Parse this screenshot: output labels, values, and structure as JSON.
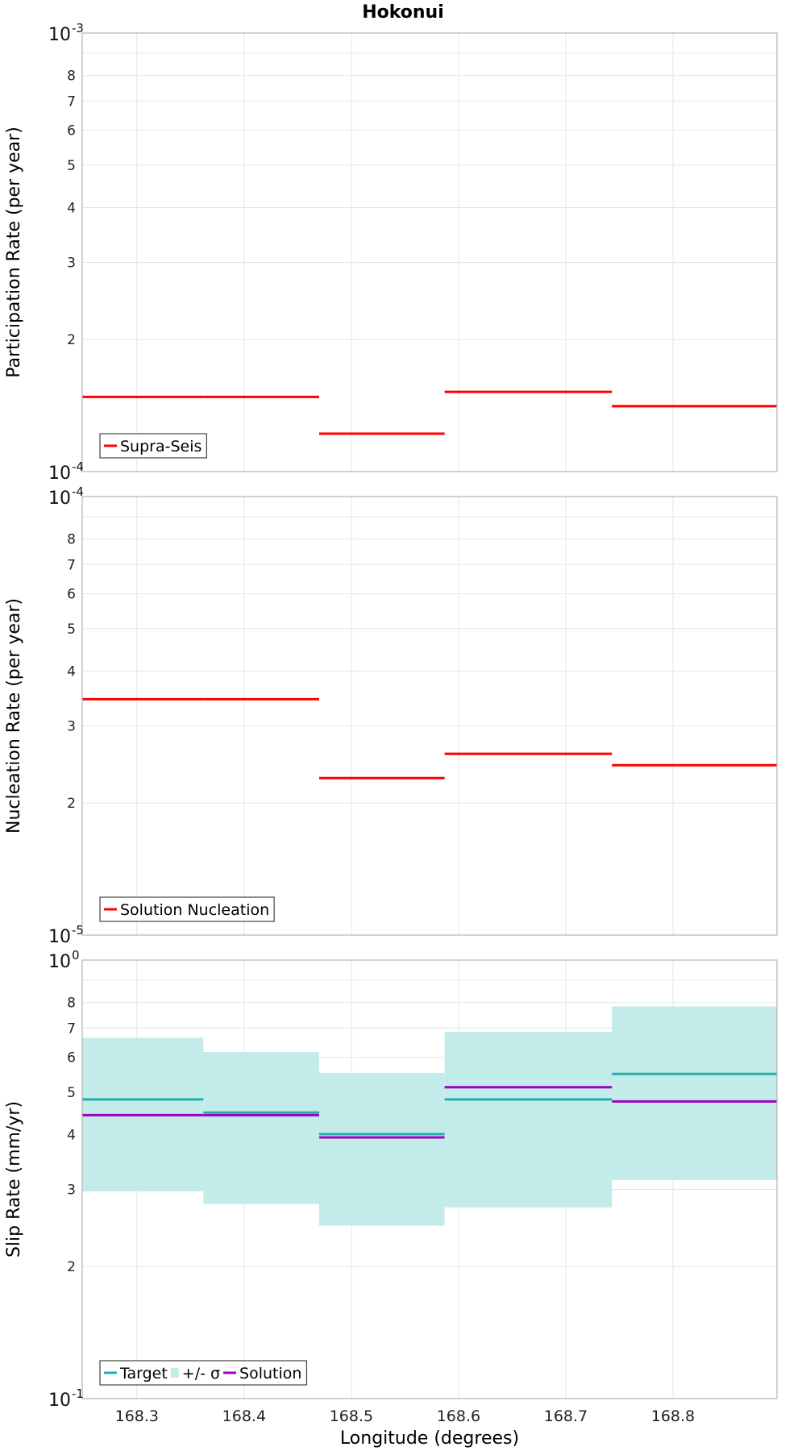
{
  "title": "Hokonui",
  "chart_data": [
    {
      "type": "line",
      "ylabel": "Participation Rate (per year)",
      "yscale": "log",
      "ylim": [
        0.0001,
        0.001
      ],
      "y_decade_labels": {
        "bottom": {
          "base": "10",
          "exp": "-4"
        },
        "top": {
          "base": "10",
          "exp": "-3"
        }
      },
      "y_minor_ticks": [
        2,
        3,
        4,
        5,
        6,
        7,
        8
      ],
      "legend": {
        "placement": "bottom-left",
        "entries": [
          {
            "label": "Supra-Seis",
            "color": "#ff0000"
          }
        ]
      },
      "series": [
        {
          "name": "Supra-Seis",
          "color": "#ff0000",
          "style": "step",
          "segments": [
            {
              "x0": 168.249,
              "x1": 168.362,
              "y": 0.000148
            },
            {
              "x0": 168.362,
              "x1": 168.47,
              "y": 0.000148
            },
            {
              "x0": 168.47,
              "x1": 168.587,
              "y": 0.000122
            },
            {
              "x0": 168.587,
              "x1": 168.743,
              "y": 0.000152
            },
            {
              "x0": 168.743,
              "x1": 168.897,
              "y": 0.000141
            }
          ]
        }
      ]
    },
    {
      "type": "line",
      "ylabel": "Nucleation Rate (per year)",
      "yscale": "log",
      "ylim": [
        1e-05,
        0.0001
      ],
      "y_decade_labels": {
        "bottom": {
          "base": "10",
          "exp": "-5"
        },
        "top": {
          "base": "10",
          "exp": "-4"
        }
      },
      "y_minor_ticks": [
        2,
        3,
        4,
        5,
        6,
        7,
        8
      ],
      "legend": {
        "placement": "bottom-left",
        "entries": [
          {
            "label": "Solution Nucleation",
            "color": "#ff0000"
          }
        ]
      },
      "series": [
        {
          "name": "Solution Nucleation",
          "color": "#ff0000",
          "style": "step",
          "segments": [
            {
              "x0": 168.249,
              "x1": 168.362,
              "y": 3.45e-05
            },
            {
              "x0": 168.362,
              "x1": 168.47,
              "y": 3.45e-05
            },
            {
              "x0": 168.47,
              "x1": 168.587,
              "y": 2.28e-05
            },
            {
              "x0": 168.587,
              "x1": 168.743,
              "y": 2.59e-05
            },
            {
              "x0": 168.743,
              "x1": 168.897,
              "y": 2.44e-05
            }
          ]
        }
      ]
    },
    {
      "type": "line",
      "xlabel": "Longitude (degrees)",
      "ylabel": "Slip Rate (mm/yr)",
      "yscale": "log",
      "ylim": [
        0.1,
        1
      ],
      "xlim": [
        168.249,
        168.897
      ],
      "x_ticks": [
        "168.3",
        "168.4",
        "168.5",
        "168.6",
        "168.7",
        "168.8"
      ],
      "y_decade_labels": {
        "bottom": {
          "base": "10",
          "exp": "-1"
        },
        "top": {
          "base": "10",
          "exp": "0"
        }
      },
      "y_minor_ticks": [
        2,
        3,
        4,
        5,
        6,
        7,
        8
      ],
      "legend": {
        "placement": "bottom-left",
        "entries": [
          {
            "label": "Target",
            "color": "#20b2aa",
            "kind": "line"
          },
          {
            "label": "+/- σ",
            "color": "#c2ebe9",
            "kind": "box"
          },
          {
            "label": "Solution",
            "color": "#a000c0",
            "kind": "line"
          }
        ]
      },
      "bands": [
        {
          "name": "+/- σ",
          "color": "#c2ebe9",
          "segments": [
            {
              "x0": 168.249,
              "x1": 168.362,
              "lo": 0.297,
              "hi": 0.665
            },
            {
              "x0": 168.362,
              "x1": 168.47,
              "lo": 0.278,
              "hi": 0.617
            },
            {
              "x0": 168.47,
              "x1": 168.587,
              "lo": 0.248,
              "hi": 0.553
            },
            {
              "x0": 168.587,
              "x1": 168.743,
              "lo": 0.273,
              "hi": 0.686
            },
            {
              "x0": 168.743,
              "x1": 168.897,
              "lo": 0.315,
              "hi": 0.784
            }
          ]
        }
      ],
      "series": [
        {
          "name": "Target",
          "color": "#20b2aa",
          "style": "step",
          "segments": [
            {
              "x0": 168.249,
              "x1": 168.362,
              "y": 0.481
            },
            {
              "x0": 168.362,
              "x1": 168.47,
              "y": 0.449
            },
            {
              "x0": 168.47,
              "x1": 168.587,
              "y": 0.401
            },
            {
              "x0": 168.587,
              "x1": 168.743,
              "y": 0.481
            },
            {
              "x0": 168.743,
              "x1": 168.897,
              "y": 0.55
            }
          ]
        },
        {
          "name": "Solution",
          "color": "#a000c0",
          "style": "step",
          "segments": [
            {
              "x0": 168.249,
              "x1": 168.362,
              "y": 0.443
            },
            {
              "x0": 168.362,
              "x1": 168.47,
              "y": 0.443
            },
            {
              "x0": 168.47,
              "x1": 168.587,
              "y": 0.394
            },
            {
              "x0": 168.587,
              "x1": 168.743,
              "y": 0.513
            },
            {
              "x0": 168.743,
              "x1": 168.897,
              "y": 0.476
            }
          ]
        }
      ]
    }
  ]
}
